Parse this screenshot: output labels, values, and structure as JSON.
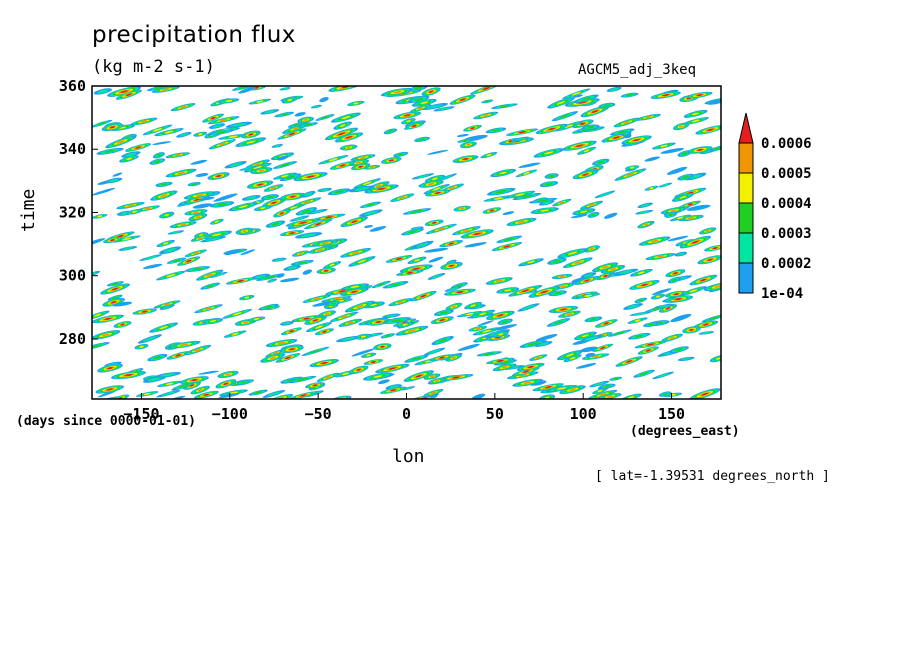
{
  "header": {
    "title": "precipitation flux",
    "units": "(kg m-2 s-1)",
    "dataset": "AGCM5_adj_3keq"
  },
  "footer": {
    "y_units_note": "(days since 0000-01-01)",
    "x_units_note": "(degrees_east)",
    "lat_note": "[ lat=-1.39531 degrees_north ]"
  },
  "chart_data": {
    "type": "heatmap",
    "title": "precipitation flux",
    "xlabel": "lon",
    "ylabel": "time",
    "xlim": [
      -178,
      178
    ],
    "ylim": [
      261,
      360
    ],
    "xticks": [
      -150,
      -100,
      -50,
      0,
      50,
      100,
      150
    ],
    "xtick_labels": [
      "−150",
      "−100",
      "−50",
      "0",
      "50",
      "100",
      "150"
    ],
    "yticks": [
      280,
      300,
      320,
      340,
      360
    ],
    "ytick_labels": [
      "280",
      "300",
      "320",
      "340",
      "360"
    ],
    "levels": [
      0.0001,
      0.0002,
      0.0003,
      0.0004,
      0.0005,
      0.0006
    ],
    "level_labels": [
      "1e-04",
      "0.0002",
      "0.0003",
      "0.0004",
      "0.0005",
      "0.0006"
    ],
    "colors": [
      "#1ea0f0",
      "#00e6a0",
      "#20d020",
      "#f0f000",
      "#f09600",
      "#e61e1e"
    ],
    "pattern": "eastward-propagating precipitation streaks throughout domain",
    "grid": false
  }
}
